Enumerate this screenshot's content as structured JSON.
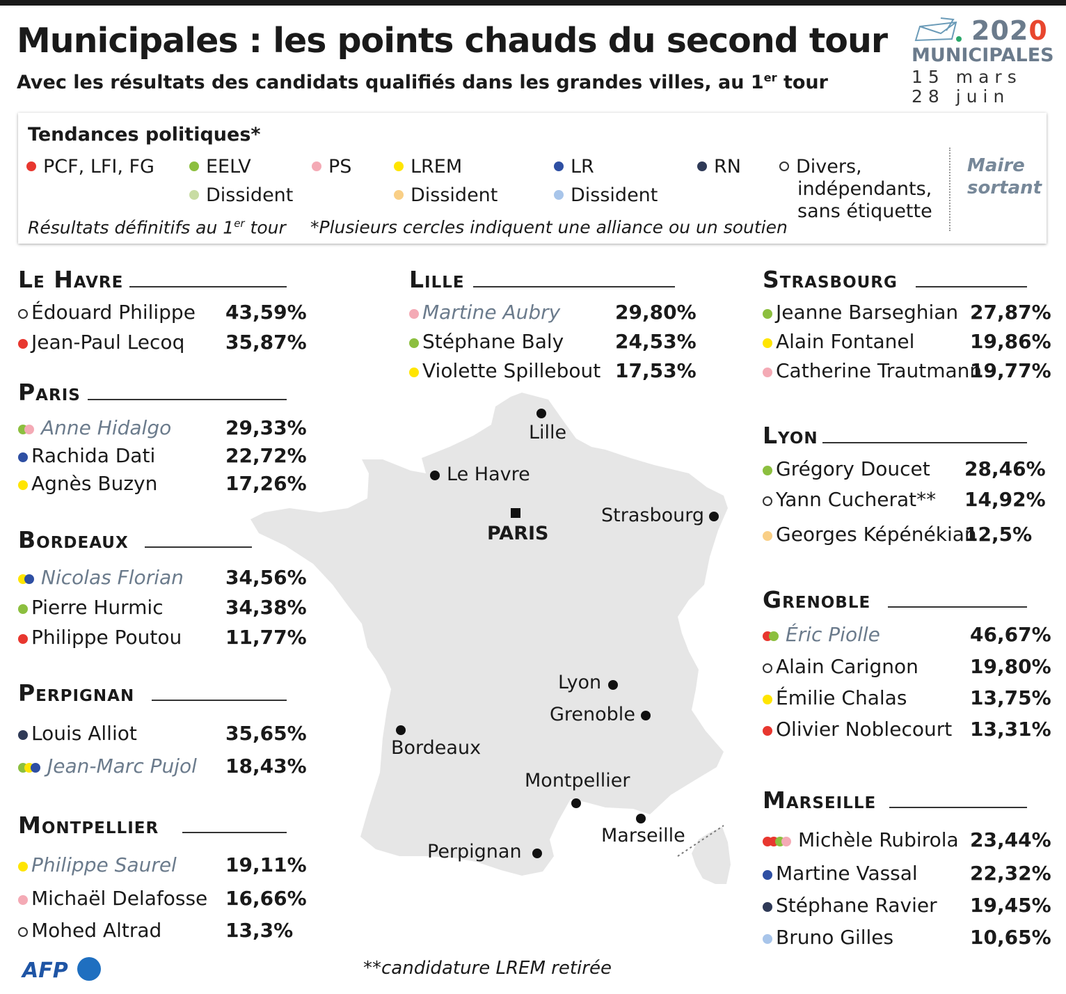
{
  "header": {
    "title": "Municipales : les points chauds du second tour",
    "subtitle_pre": "Avec les résultats des candidats qualifiés dans les grandes villes, au 1",
    "subtitle_sup": "er",
    "subtitle_post": " tour"
  },
  "logo": {
    "year_a": "202",
    "year_b": "0",
    "label": "MUNICIPALES",
    "date1": "15 mars",
    "date2": "28 juin"
  },
  "legend": {
    "title": "Tendances politiques*",
    "items": [
      {
        "label": "PCF, LFI, FG",
        "color": "#e8372f"
      },
      {
        "label": "EELV",
        "color": "#8cbf3f"
      },
      {
        "label": "Dissident",
        "color": "#c8dca3"
      },
      {
        "label": "PS",
        "color": "#f4aab5"
      },
      {
        "label": "LREM",
        "color": "#ffe500"
      },
      {
        "label": "Dissident",
        "color": "#f9cf86"
      },
      {
        "label": "LR",
        "color": "#2e4fa3"
      },
      {
        "label": "Dissident",
        "color": "#a8c5ea"
      },
      {
        "label": "RN",
        "color": "#2f3a57"
      },
      {
        "label": "Divers,",
        "color": "none"
      }
    ],
    "divers_line2": "indépendants,",
    "divers_line3": "sans étiquette",
    "maire_line1": "Maire",
    "maire_line2": "sortant",
    "note1_pre": "Résultats définitifs au 1",
    "note1_sup": "er",
    "note1_post": " tour",
    "note2": "*Plusieurs cercles indiquent une alliance ou un soutien"
  },
  "cities": {
    "lehavre": {
      "name": "Le Havre",
      "candidates": [
        {
          "name": "Édouard Philippe",
          "pct": "43,59%",
          "colors": [
            "none"
          ],
          "incumbent": false
        },
        {
          "name": "Jean-Paul Lecoq",
          "pct": "35,87%",
          "colors": [
            "#e8372f"
          ],
          "incumbent": false
        }
      ]
    },
    "paris": {
      "name": "Paris",
      "candidates": [
        {
          "name": "Anne Hidalgo",
          "pct": "29,33%",
          "colors": [
            "#8cbf3f",
            "#f4aab5"
          ],
          "incumbent": true
        },
        {
          "name": "Rachida Dati",
          "pct": "22,72%",
          "colors": [
            "#2e4fa3"
          ],
          "incumbent": false
        },
        {
          "name": "Agnès Buzyn",
          "pct": "17,26%",
          "colors": [
            "#ffe500"
          ],
          "incumbent": false
        }
      ]
    },
    "bordeaux": {
      "name": "Bordeaux",
      "candidates": [
        {
          "name": "Nicolas Florian",
          "pct": "34,56%",
          "colors": [
            "#ffe500",
            "#2e4fa3"
          ],
          "incumbent": true
        },
        {
          "name": "Pierre Hurmic",
          "pct": "34,38%",
          "colors": [
            "#8cbf3f"
          ],
          "incumbent": false
        },
        {
          "name": "Philippe Poutou",
          "pct": "11,77%",
          "colors": [
            "#e8372f"
          ],
          "incumbent": false
        }
      ]
    },
    "perpignan": {
      "name": "Perpignan",
      "candidates": [
        {
          "name": "Louis Alliot",
          "pct": "35,65%",
          "colors": [
            "#2f3a57"
          ],
          "incumbent": false
        },
        {
          "name": "Jean-Marc Pujol",
          "pct": "18,43%",
          "colors": [
            "#8cbf3f",
            "#ffe500",
            "#2e4fa3"
          ],
          "incumbent": true
        }
      ]
    },
    "montpellier": {
      "name": "Montpellier",
      "candidates": [
        {
          "name": "Philippe Saurel",
          "pct": "19,11%",
          "colors": [
            "#ffe500"
          ],
          "incumbent": true
        },
        {
          "name": "Michaël Delafosse",
          "pct": "16,66%",
          "colors": [
            "#f4aab5"
          ],
          "incumbent": false
        },
        {
          "name": "Mohed Altrad",
          "pct": "13,3%",
          "colors": [
            "none"
          ],
          "incumbent": false
        }
      ]
    },
    "lille": {
      "name": "Lille",
      "candidates": [
        {
          "name": "Martine Aubry",
          "pct": "29,80%",
          "colors": [
            "#f4aab5"
          ],
          "incumbent": true
        },
        {
          "name": "Stéphane Baly",
          "pct": "24,53%",
          "colors": [
            "#8cbf3f"
          ],
          "incumbent": false
        },
        {
          "name": "Violette Spillebout",
          "pct": "17,53%",
          "colors": [
            "#ffe500"
          ],
          "incumbent": false
        }
      ]
    },
    "strasbourg": {
      "name": "Strasbourg",
      "candidates": [
        {
          "name": "Jeanne Barseghian",
          "pct": "27,87%",
          "colors": [
            "#8cbf3f"
          ],
          "incumbent": false
        },
        {
          "name": "Alain Fontanel",
          "pct": "19,86%",
          "colors": [
            "#ffe500"
          ],
          "incumbent": false
        },
        {
          "name": "Catherine Trautmann",
          "pct": "19,77%",
          "colors": [
            "#f4aab5"
          ],
          "incumbent": false
        }
      ]
    },
    "lyon": {
      "name": "Lyon",
      "candidates": [
        {
          "name": "Grégory Doucet",
          "pct": "28,46%",
          "colors": [
            "#8cbf3f"
          ],
          "incumbent": false
        },
        {
          "name": "Yann Cucherat**",
          "pct": "14,92%",
          "colors": [
            "none"
          ],
          "incumbent": false
        },
        {
          "name": "Georges Képénékian",
          "pct": "12,5%",
          "colors": [
            "#f9cf86"
          ],
          "incumbent": false
        }
      ]
    },
    "grenoble": {
      "name": "Grenoble",
      "candidates": [
        {
          "name": "Éric Piolle",
          "pct": "46,67%",
          "colors": [
            "#e8372f",
            "#8cbf3f"
          ],
          "incumbent": true
        },
        {
          "name": "Alain Carignon",
          "pct": "19,80%",
          "colors": [
            "none"
          ],
          "incumbent": false
        },
        {
          "name": "Émilie Chalas",
          "pct": "13,75%",
          "colors": [
            "#ffe500"
          ],
          "incumbent": false
        },
        {
          "name": "Olivier Noblecourt",
          "pct": "13,31%",
          "colors": [
            "#e8372f"
          ],
          "incumbent": false
        }
      ]
    },
    "marseille": {
      "name": "Marseille",
      "candidates": [
        {
          "name": "Michèle Rubirola",
          "pct": "23,44%",
          "colors": [
            "#e8372f",
            "#e8372f",
            "#8cbf3f",
            "#f4aab5"
          ],
          "incumbent": false
        },
        {
          "name": "Martine Vassal",
          "pct": "22,32%",
          "colors": [
            "#2e4fa3"
          ],
          "incumbent": false
        },
        {
          "name": "Stéphane Ravier",
          "pct": "19,45%",
          "colors": [
            "#2f3a57"
          ],
          "incumbent": false
        },
        {
          "name": "Bruno Gilles",
          "pct": "10,65%",
          "colors": [
            "#a8c5ea"
          ],
          "incumbent": false
        }
      ]
    }
  },
  "map": {
    "labels": {
      "lille": "Lille",
      "lehavre": "Le Havre",
      "paris": "PARIS",
      "strasbourg": "Strasbourg",
      "lyon": "Lyon",
      "grenoble": "Grenoble",
      "bordeaux": "Bordeaux",
      "montpellier": "Montpellier",
      "marseille": "Marseille",
      "perpignan": "Perpignan"
    },
    "land_color": "#e6e6e6"
  },
  "footnote": "**candidature LREM retirée",
  "credit": "AFP"
}
